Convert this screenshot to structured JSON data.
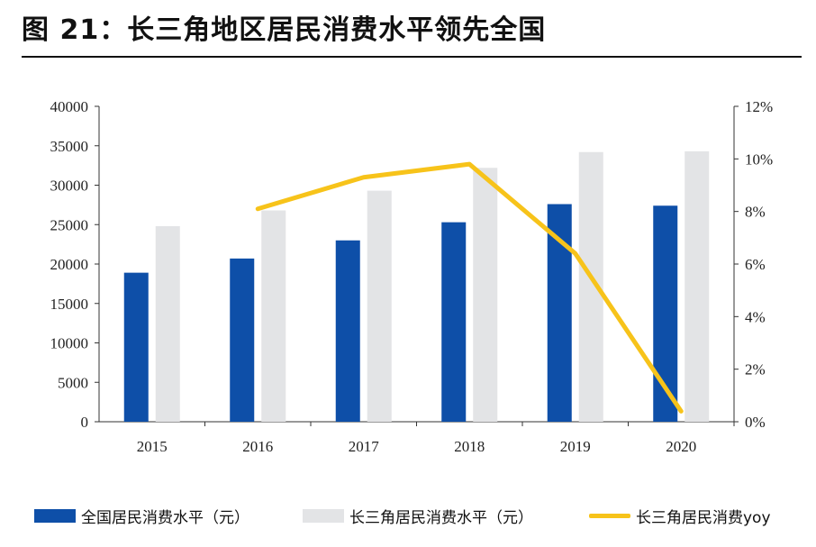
{
  "title": "图  21：长三角地区居民消费水平领先全国",
  "colors": {
    "national_bar": "#0e4fa8",
    "yrd_bar": "#e3e4e6",
    "yoy_line": "#f7c31a",
    "axis": "#333333"
  },
  "chart_data": {
    "type": "bar",
    "categories": [
      "2015",
      "2016",
      "2017",
      "2018",
      "2019",
      "2020"
    ],
    "series": [
      {
        "name": "全国居民消费水平（元）",
        "type": "bar",
        "axis": "left",
        "values": [
          18900,
          20700,
          23000,
          25300,
          27600,
          27400
        ]
      },
      {
        "name": "长三角居民消费水平（元）",
        "type": "bar",
        "axis": "left",
        "values": [
          24800,
          26800,
          29300,
          32200,
          34200,
          34300
        ]
      },
      {
        "name": "长三角居民消费yoy",
        "type": "line",
        "axis": "right",
        "values": [
          null,
          0.081,
          0.093,
          0.098,
          0.064,
          0.004
        ]
      }
    ],
    "y_left": {
      "min": 0,
      "max": 40000,
      "ticks": [
        "0",
        "5000",
        "10000",
        "15000",
        "20000",
        "25000",
        "30000",
        "35000",
        "40000"
      ]
    },
    "y_right": {
      "min": 0,
      "max": 0.12,
      "ticks": [
        "0%",
        "2%",
        "4%",
        "6%",
        "8%",
        "10%",
        "12%"
      ]
    },
    "grid": false,
    "legend_position": "bottom"
  }
}
